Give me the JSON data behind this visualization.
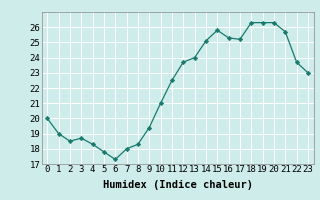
{
  "x": [
    0,
    1,
    2,
    3,
    4,
    5,
    6,
    7,
    8,
    9,
    10,
    11,
    12,
    13,
    14,
    15,
    16,
    17,
    18,
    19,
    20,
    21,
    22,
    23
  ],
  "y": [
    20,
    19,
    18.5,
    18.7,
    18.3,
    17.8,
    17.3,
    18,
    18.3,
    19.4,
    21,
    22.5,
    23.7,
    24,
    25.1,
    25.8,
    25.3,
    25.2,
    26.3,
    26.3,
    26.3,
    25.7,
    23.7,
    23
  ],
  "xlabel": "Humidex (Indice chaleur)",
  "xlim": [
    -0.5,
    23.5
  ],
  "ylim": [
    17,
    27
  ],
  "yticks": [
    17,
    18,
    19,
    20,
    21,
    22,
    23,
    24,
    25,
    26
  ],
  "xticks": [
    0,
    1,
    2,
    3,
    4,
    5,
    6,
    7,
    8,
    9,
    10,
    11,
    12,
    13,
    14,
    15,
    16,
    17,
    18,
    19,
    20,
    21,
    22,
    23
  ],
  "line_color": "#1a7a6e",
  "marker_color": "#1a7a6e",
  "bg_color": "#ceecea",
  "grid_color": "#ffffff",
  "label_fontsize": 7.5,
  "tick_fontsize": 6.5
}
